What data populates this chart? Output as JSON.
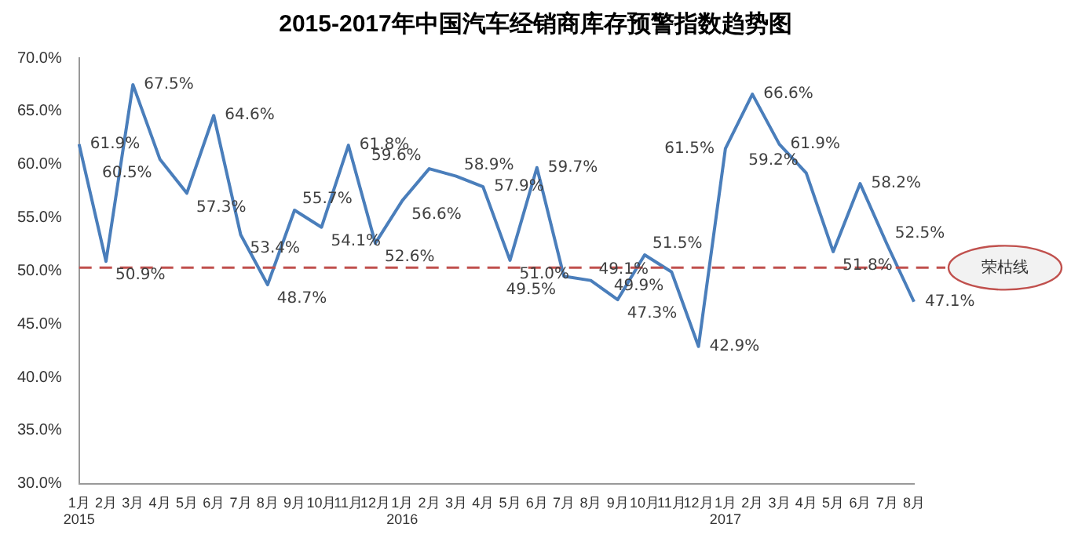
{
  "chart_data": {
    "type": "line",
    "title": "2015-2017年中国汽车经销商库存预警指数趋势图",
    "categories": [
      "1月\n2015",
      "2月",
      "3月",
      "4月",
      "5月",
      "6月",
      "7月",
      "8月",
      "9月",
      "10月",
      "11月",
      "12月",
      "1月\n2016",
      "2月",
      "3月",
      "4月",
      "5月",
      "6月",
      "7月",
      "8月",
      "9月",
      "10月",
      "11月",
      "12月",
      "1月\n2017",
      "2月",
      "3月",
      "4月",
      "5月",
      "6月",
      "7月",
      "8月"
    ],
    "series": [
      {
        "color": "#4a7ebb",
        "values": [
          61.9,
          50.9,
          67.5,
          60.5,
          57.3,
          64.6,
          53.4,
          48.7,
          55.7,
          54.1,
          61.8,
          52.6,
          56.6,
          59.6,
          58.9,
          57.9,
          51.0,
          59.7,
          49.5,
          49.1,
          47.3,
          51.5,
          49.9,
          42.9,
          61.5,
          66.6,
          61.9,
          59.2,
          51.8,
          58.2,
          52.5,
          47.1
        ],
        "value_labels": [
          "61.9%",
          "50.9%",
          "67.5%",
          "60.5%",
          "57.3%",
          "64.6%",
          "53.4%",
          "48.7%",
          "55.7%",
          "54.1%",
          "61.8%",
          "52.6%",
          "56.6%",
          "59.6%",
          "58.9%",
          "57.9%",
          "51.0%",
          "59.7%",
          "49.5%",
          "49.1%",
          "47.3%",
          "51.5%",
          "49.9%",
          "42.9%",
          "61.5%",
          "66.6%",
          "61.9%",
          "59.2%",
          "51.8%",
          "58.2%",
          "52.5%",
          "47.1%"
        ]
      }
    ],
    "ylim": [
      30,
      70
    ],
    "yticks": [
      {
        "value": 30,
        "label": "30.0%"
      },
      {
        "value": 35,
        "label": "35.0%"
      },
      {
        "value": 40,
        "label": "40.0%"
      },
      {
        "value": 45,
        "label": "45.0%"
      },
      {
        "value": 50,
        "label": "50.0%"
      },
      {
        "value": 55,
        "label": "55.0%"
      },
      {
        "value": 60,
        "label": "60.0%"
      },
      {
        "value": 65,
        "label": "65.0%"
      },
      {
        "value": 70,
        "label": "70.0%"
      }
    ],
    "ref_lines": [
      {
        "axis": "y",
        "value": 50.3,
        "label": "荣枯线",
        "color": "#c0504d",
        "line_style": "dashed"
      }
    ],
    "grid": false,
    "legend": false,
    "marker": "none",
    "line_style": "solid"
  }
}
